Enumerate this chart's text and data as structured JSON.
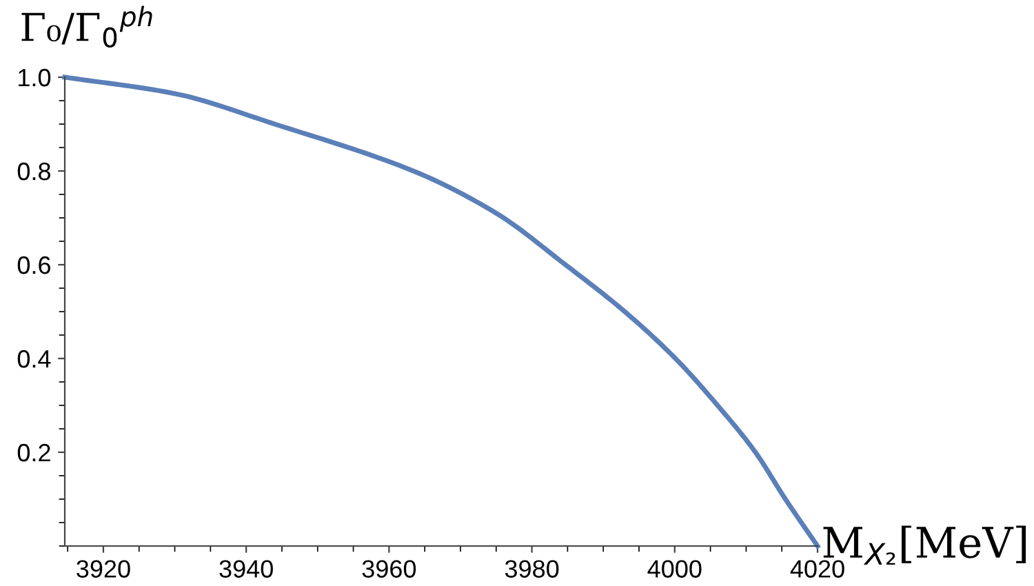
{
  "chart_data": {
    "type": "line",
    "xlabel": "M$_{X₂}$[MeV]",
    "ylabel": "Γ₀/Γ$_{0}$$^{ph}$",
    "x": [
      3914.6,
      3930,
      3944,
      3963.4,
      3975,
      3984.7,
      3993,
      4000.1,
      4006,
      4011.3,
      4015.5,
      4020
    ],
    "series": [
      {
        "color": "#5b7fb8",
        "values": [
          1.0,
          0.965,
          0.9,
          0.8,
          0.71,
          0.6,
          0.5,
          0.4,
          0.3,
          0.2,
          0.1,
          0.0
        ]
      }
    ],
    "xlim": [
      3914.6,
      4020
    ],
    "ylim": [
      0,
      1.0
    ],
    "xticks": [
      3920,
      3940,
      3960,
      3980,
      4000,
      4020
    ],
    "yticks": [
      0.2,
      0.4,
      0.6,
      0.8,
      {
        "value": 1,
        "label": "1.0"
      }
    ],
    "grid": false,
    "marker": "none",
    "line_style": "solid"
  }
}
